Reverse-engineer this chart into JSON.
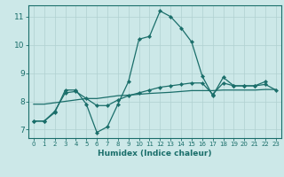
{
  "xlabel": "Humidex (Indice chaleur)",
  "xlim": [
    -0.5,
    23.5
  ],
  "ylim": [
    6.7,
    11.4
  ],
  "xticks": [
    0,
    1,
    2,
    3,
    4,
    5,
    6,
    7,
    8,
    9,
    10,
    11,
    12,
    13,
    14,
    15,
    16,
    17,
    18,
    19,
    20,
    21,
    22,
    23
  ],
  "yticks": [
    7,
    8,
    9,
    10,
    11
  ],
  "bg_color": "#cce8e8",
  "line_color": "#1a6e6a",
  "grid_color": "#b0d0d0",
  "line1_x": [
    0,
    1,
    2,
    3,
    4,
    5,
    6,
    7,
    8,
    9,
    10,
    11,
    12,
    13,
    14,
    15,
    16,
    17,
    18,
    19,
    20,
    21,
    22
  ],
  "line1_y": [
    7.3,
    7.3,
    7.6,
    8.4,
    8.4,
    7.9,
    6.9,
    7.1,
    7.9,
    8.7,
    10.2,
    10.3,
    11.2,
    11.0,
    10.6,
    10.1,
    8.9,
    8.2,
    8.85,
    8.55,
    8.55,
    8.55,
    8.7
  ],
  "line2_x": [
    0,
    1,
    2,
    3,
    4,
    5,
    6,
    7,
    8,
    9,
    10,
    11,
    12,
    13,
    14,
    15,
    16,
    17,
    18,
    19,
    20,
    21,
    22,
    23
  ],
  "line2_y": [
    7.3,
    7.3,
    7.65,
    8.3,
    8.35,
    8.1,
    7.85,
    7.85,
    8.05,
    8.2,
    8.3,
    8.4,
    8.5,
    8.55,
    8.6,
    8.65,
    8.65,
    8.25,
    8.65,
    8.55,
    8.55,
    8.55,
    8.6,
    8.4
  ],
  "line3_x": [
    0,
    1,
    2,
    3,
    4,
    5,
    6,
    7,
    8,
    9,
    10,
    11,
    12,
    13,
    14,
    15,
    16,
    17,
    18,
    19,
    20,
    21,
    22,
    23
  ],
  "line3_y": [
    7.9,
    7.9,
    7.95,
    8.0,
    8.05,
    8.1,
    8.1,
    8.15,
    8.2,
    8.22,
    8.25,
    8.28,
    8.3,
    8.32,
    8.35,
    8.38,
    8.38,
    8.38,
    8.4,
    8.4,
    8.4,
    8.4,
    8.42,
    8.42
  ]
}
